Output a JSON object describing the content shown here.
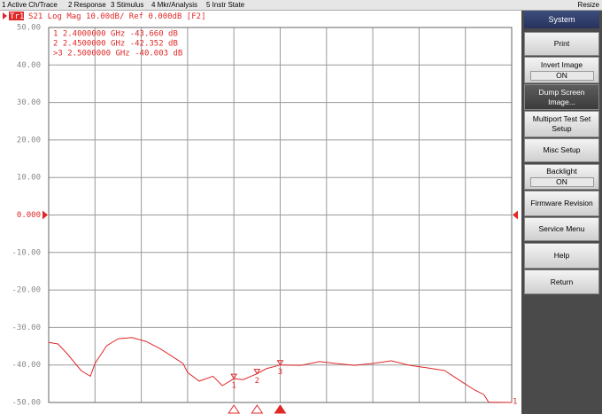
{
  "menu": [
    "1 Active Ch/Trace",
    "2 Response",
    "3 Stimulus",
    "4 Mkr/Analysis",
    "5 Instr State",
    "Resize"
  ],
  "softkeys": {
    "title": "System",
    "keys": [
      {
        "label": "Print"
      },
      {
        "label": "Invert Image",
        "state": "ON"
      },
      {
        "label": "Dump Screen Image..."
      },
      {
        "label": "Multiport Test Set Setup"
      },
      {
        "label": "Misc Setup"
      },
      {
        "label": "Backlight",
        "state": "ON"
      },
      {
        "label": "Firmware Revision"
      },
      {
        "label": "Service Menu"
      },
      {
        "label": "Help"
      },
      {
        "label": "Return"
      }
    ]
  },
  "header": {
    "trace": "Tr1",
    "text": "S21 Log Mag 10.00dB/ Ref 0.000dB [F2]"
  },
  "chart_data": {
    "type": "line",
    "x": [
      2.0,
      2.02,
      2.04,
      2.07,
      2.09,
      2.1,
      2.125,
      2.15,
      2.18,
      2.21,
      2.24,
      2.27,
      2.29,
      2.3,
      2.325,
      2.355,
      2.375,
      2.4,
      2.42,
      2.45,
      2.47,
      2.5,
      2.545,
      2.585,
      2.62,
      2.66,
      2.7,
      2.74,
      2.78,
      2.82,
      2.855,
      2.89,
      2.92,
      2.94,
      2.95,
      3.0
    ],
    "series": [
      {
        "name": "1",
        "color": "#e02828",
        "values": [
          -34,
          -34.4,
          -37,
          -41.5,
          -43,
          -39.6,
          -34.9,
          -33,
          -32.7,
          -33.7,
          -35.6,
          -38,
          -39.6,
          -42,
          -44.3,
          -43,
          -45.5,
          -43.66,
          -43.9,
          -42.352,
          -41,
          -40.003,
          -40.1,
          -39.1,
          -39.6,
          -40.1,
          -39.6,
          -38.9,
          -40.1,
          -40.8,
          -41.5,
          -44.3,
          -46.7,
          -47.9,
          -49.9,
          -50
        ]
      }
    ],
    "xlim": [
      2.0,
      3.0
    ],
    "ylim": [
      -50,
      50
    ],
    "yticks": [
      {
        "value": 50,
        "label": "50.00"
      },
      {
        "value": 40,
        "label": "40.00"
      },
      {
        "value": 30,
        "label": "30.00"
      },
      {
        "value": 20,
        "label": "20.00"
      },
      {
        "value": 10,
        "label": "10.00"
      },
      {
        "value": 0,
        "label": "0.000"
      },
      {
        "value": -10,
        "label": "-10.00"
      },
      {
        "value": -20,
        "label": "-20.00"
      },
      {
        "value": -30,
        "label": "-30.00"
      },
      {
        "value": -40,
        "label": "-40.00"
      },
      {
        "value": -50,
        "label": "-50.00"
      }
    ],
    "xgrid_divisions": 10,
    "grid": true,
    "markers": [
      {
        "id": "1",
        "readout": " 1  2.4000000 GHz -43.660 dB",
        "x": 2.4,
        "y": -43.66
      },
      {
        "id": "2",
        "readout": " 2  2.4500000 GHz -42.352 dB",
        "x": 2.45,
        "y": -42.352
      },
      {
        "id": "3",
        "readout": ">3  2.5000000 GHz -40.003 dB",
        "x": 2.5,
        "y": -40.003,
        "active": true
      }
    ]
  }
}
